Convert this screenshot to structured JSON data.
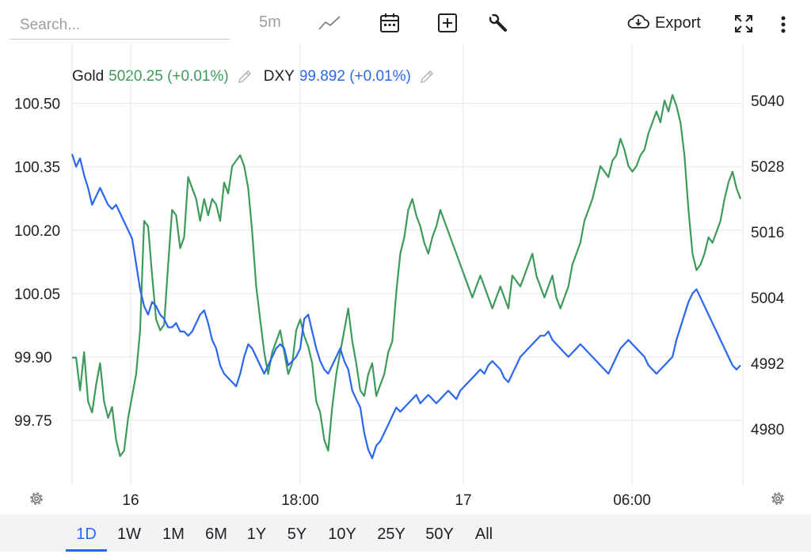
{
  "toolbar": {
    "search_placeholder": "Search...",
    "interval": "5m",
    "export_label": "Export",
    "icons": [
      "line-chart-icon",
      "calendar-icon",
      "add-box-icon",
      "wrench-icon",
      "cloud-download-icon",
      "fullscreen-icon",
      "more-vertical-icon"
    ]
  },
  "legend": {
    "gold": {
      "name": "Gold",
      "value": "5020.25 (+0.01%)",
      "color": "#3d9a5a"
    },
    "dxy": {
      "name": "DXY",
      "value": "99.892 (+0.01%)",
      "color": "#2b66f0"
    }
  },
  "ranges": {
    "items": [
      "1D",
      "1W",
      "1M",
      "6M",
      "1Y",
      "5Y",
      "10Y",
      "25Y",
      "50Y",
      "All"
    ],
    "active": "1D"
  },
  "chart_data": {
    "type": "line",
    "x_ticks": [
      "16",
      "18:00",
      "17",
      "06:00"
    ],
    "left_axis": {
      "ticks": [
        "100.50",
        "100.35",
        "100.20",
        "100.05",
        "99.90",
        "99.75"
      ],
      "ylim": [
        99.6,
        100.52
      ]
    },
    "right_axis": {
      "ticks": [
        "5040",
        "5028",
        "5016",
        "5004",
        "4992",
        "4980"
      ],
      "ylim": [
        4970,
        5041
      ]
    },
    "grid": true,
    "series": [
      {
        "name": "Gold",
        "axis": "right",
        "color": "#3d9a5a",
        "values": [
          4993,
          4993,
          4987,
          4994,
          4985,
          4983,
          4988,
          4992,
          4985,
          4982,
          4984,
          4978,
          4975,
          4976,
          4982,
          4986,
          4990,
          4998,
          5018,
          5017,
          5008,
          5000,
          4998,
          4999,
          5010,
          5020,
          5019,
          5013,
          5015,
          5026,
          5024,
          5022,
          5018,
          5022,
          5019,
          5022,
          5021,
          5018,
          5025,
          5023,
          5028,
          5029,
          5030,
          5028,
          5024,
          5016,
          5006,
          5000,
          4994,
          4990,
          4994,
          4996,
          4998,
          4994,
          4990,
          4992,
          4998,
          5000,
          4997,
          4995,
          4992,
          4985,
          4983,
          4978,
          4976,
          4984,
          4990,
          4994,
          4998,
          5002,
          4996,
          4992,
          4987,
          4986,
          4990,
          4992,
          4986,
          4988,
          4990,
          4994,
          4996,
          5005,
          5012,
          5015,
          5020,
          5022,
          5019,
          5017,
          5014,
          5012,
          5015,
          5017,
          5020,
          5018,
          5016,
          5014,
          5012,
          5010,
          5008,
          5006,
          5004,
          5006,
          5008,
          5006,
          5004,
          5002,
          5004,
          5006,
          5004,
          5002,
          5008,
          5007,
          5006,
          5008,
          5010,
          5012,
          5008,
          5006,
          5004,
          5006,
          5008,
          5004,
          5002,
          5004,
          5006,
          5010,
          5012,
          5014,
          5018,
          5020,
          5022,
          5025,
          5028,
          5027,
          5026,
          5029,
          5030,
          5033,
          5031,
          5028,
          5027,
          5028,
          5030,
          5031,
          5034,
          5036,
          5038,
          5036,
          5040,
          5038,
          5041,
          5039,
          5036,
          5030,
          5020,
          5012,
          5009,
          5010,
          5012,
          5015,
          5014,
          5016,
          5018,
          5022,
          5025,
          5027,
          5024,
          5022
        ]
      },
      {
        "name": "DXY",
        "axis": "left",
        "color": "#2b66f0",
        "values": [
          100.38,
          100.35,
          100.37,
          100.33,
          100.3,
          100.26,
          100.28,
          100.3,
          100.28,
          100.26,
          100.25,
          100.26,
          100.24,
          100.22,
          100.2,
          100.18,
          100.12,
          100.06,
          100.02,
          100.0,
          100.03,
          100.02,
          100.0,
          99.99,
          99.97,
          99.97,
          99.98,
          99.96,
          99.96,
          99.95,
          99.96,
          99.98,
          100.0,
          100.01,
          99.98,
          99.94,
          99.92,
          99.88,
          99.86,
          99.85,
          99.84,
          99.83,
          99.86,
          99.9,
          99.93,
          99.92,
          99.9,
          99.88,
          99.86,
          99.88,
          99.9,
          99.92,
          99.93,
          99.92,
          99.88,
          99.89,
          99.9,
          99.92,
          99.99,
          100.0,
          99.96,
          99.92,
          99.89,
          99.87,
          99.86,
          99.88,
          99.9,
          99.92,
          99.89,
          99.87,
          99.82,
          99.8,
          99.78,
          99.72,
          99.68,
          99.66,
          99.69,
          99.7,
          99.72,
          99.74,
          99.76,
          99.78,
          99.77,
          99.78,
          99.79,
          99.8,
          99.81,
          99.79,
          99.8,
          99.81,
          99.8,
          99.79,
          99.8,
          99.81,
          99.82,
          99.81,
          99.8,
          99.82,
          99.83,
          99.84,
          99.85,
          99.86,
          99.87,
          99.86,
          99.88,
          99.89,
          99.88,
          99.87,
          99.85,
          99.84,
          99.86,
          99.88,
          99.9,
          99.91,
          99.92,
          99.93,
          99.94,
          99.95,
          99.95,
          99.96,
          99.94,
          99.93,
          99.92,
          99.91,
          99.9,
          99.91,
          99.92,
          99.93,
          99.92,
          99.91,
          99.9,
          99.89,
          99.88,
          99.87,
          99.86,
          99.88,
          99.9,
          99.92,
          99.93,
          99.94,
          99.93,
          99.92,
          99.91,
          99.9,
          99.88,
          99.87,
          99.86,
          99.87,
          99.88,
          99.89,
          99.9,
          99.94,
          99.97,
          100.0,
          100.03,
          100.05,
          100.06,
          100.04,
          100.02,
          100.0,
          99.98,
          99.96,
          99.94,
          99.92,
          99.9,
          99.88,
          99.87,
          99.88
        ]
      }
    ]
  }
}
